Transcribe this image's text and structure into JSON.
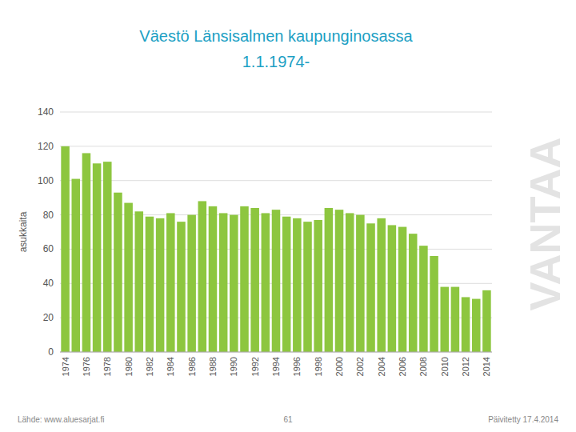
{
  "chart_data": {
    "type": "bar",
    "title": "Väestö Länsisalmen kaupunginosassa",
    "subtitle": "1.1.1974-",
    "y_label": "asukkaita",
    "annotations": [
      "VANTAA",
      "Lähde: www.aluesarjat.fi",
      "61",
      "Päivitetty 17.4.2014"
    ],
    "categories": [
      "1974",
      null,
      "1976",
      null,
      "1978",
      null,
      "1980",
      null,
      "1982",
      null,
      "1984",
      null,
      "1986",
      null,
      "1988",
      null,
      "1990",
      null,
      "1992",
      null,
      "1994",
      null,
      "1996",
      null,
      "1998",
      null,
      "2000",
      null,
      "2002",
      null,
      "2004",
      null,
      "2006",
      null,
      "2008",
      null,
      "2010",
      null,
      "2012",
      null,
      "2014"
    ],
    "values": [
      120,
      101,
      116,
      110,
      111,
      93,
      87,
      82,
      79,
      78,
      81,
      76,
      80,
      88,
      85,
      81,
      80,
      85,
      84,
      81,
      83,
      79,
      78,
      76,
      77,
      84,
      83,
      81,
      80,
      75,
      78,
      74,
      73,
      69,
      62,
      56,
      38,
      38,
      32,
      31,
      36
    ],
    "color": "#8dc63f",
    "ylim": [
      0,
      140
    ],
    "yticks": [
      0,
      20,
      40,
      60,
      80,
      100,
      120,
      140
    ],
    "grid": true
  }
}
